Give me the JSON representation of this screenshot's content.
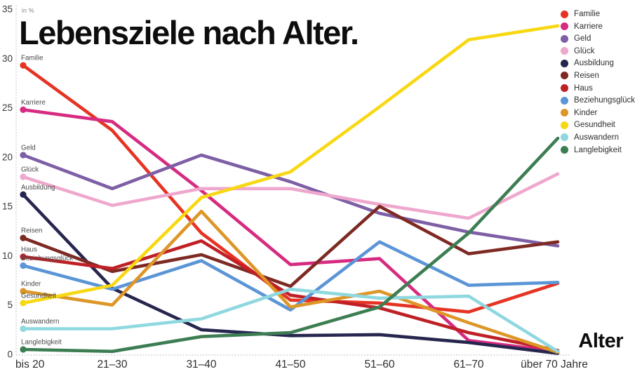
{
  "header": {
    "title": "Lebensziele nach Alter."
  },
  "axis": {
    "unit_label": "in %",
    "x_title": "Alter",
    "y_ticks": [
      0,
      5,
      10,
      15,
      20,
      25,
      30,
      35
    ]
  },
  "chart_data": {
    "type": "line",
    "title": "Lebensziele nach Alter.",
    "ylabel": "in %",
    "xlabel": "Alter",
    "ylim": [
      0,
      35
    ],
    "grid": false,
    "legend_position": "right",
    "categories": [
      "bis 20",
      "21–30",
      "31–40",
      "41–50",
      "51–60",
      "61–70",
      "über 70 Jahre"
    ],
    "series": [
      {
        "name": "Familie",
        "color": "#e63323",
        "values": [
          29.3,
          22.7,
          12.3,
          5.5,
          5.2,
          4.3,
          7.2
        ]
      },
      {
        "name": "Karriere",
        "color": "#d62b80",
        "values": [
          24.8,
          23.6,
          16.6,
          9.1,
          9.7,
          1.4,
          0.3
        ]
      },
      {
        "name": "Geld",
        "color": "#7e5fa5",
        "values": [
          20.2,
          16.8,
          20.2,
          17.5,
          14.3,
          12.4,
          11.0
        ]
      },
      {
        "name": "Glück",
        "color": "#efa8cd",
        "values": [
          18.0,
          15.1,
          16.8,
          16.8,
          15.2,
          13.8,
          18.3
        ]
      },
      {
        "name": "Ausbildung",
        "color": "#26264f",
        "values": [
          16.2,
          6.7,
          2.5,
          1.9,
          2.0,
          1.2,
          0.1
        ]
      },
      {
        "name": "Reisen",
        "color": "#7e2a23",
        "values": [
          11.8,
          8.4,
          10.1,
          6.9,
          15.0,
          10.2,
          11.4
        ]
      },
      {
        "name": "Haus",
        "color": "#bf2026",
        "values": [
          9.9,
          8.7,
          11.5,
          6.0,
          4.7,
          2.2,
          0.4
        ]
      },
      {
        "name": "Beziehungsglück",
        "color": "#5b95d6",
        "values": [
          9.0,
          6.6,
          9.5,
          4.5,
          11.4,
          7.0,
          7.3
        ]
      },
      {
        "name": "Kinder",
        "color": "#dd9627",
        "values": [
          6.4,
          5.0,
          14.5,
          4.8,
          6.4,
          3.2,
          0.2
        ]
      },
      {
        "name": "Gesundheit",
        "color": "#f8d813",
        "values": [
          5.2,
          7.0,
          15.9,
          18.5,
          25.1,
          31.9,
          33.3
        ]
      },
      {
        "name": "Auswandern",
        "color": "#8fd8e0",
        "values": [
          2.6,
          2.6,
          3.6,
          6.6,
          5.7,
          5.9,
          0.3
        ]
      },
      {
        "name": "Langlebigkeit",
        "color": "#3d7d52",
        "values": [
          0.5,
          0.3,
          1.8,
          2.2,
          4.8,
          12.3,
          21.9
        ]
      }
    ]
  }
}
